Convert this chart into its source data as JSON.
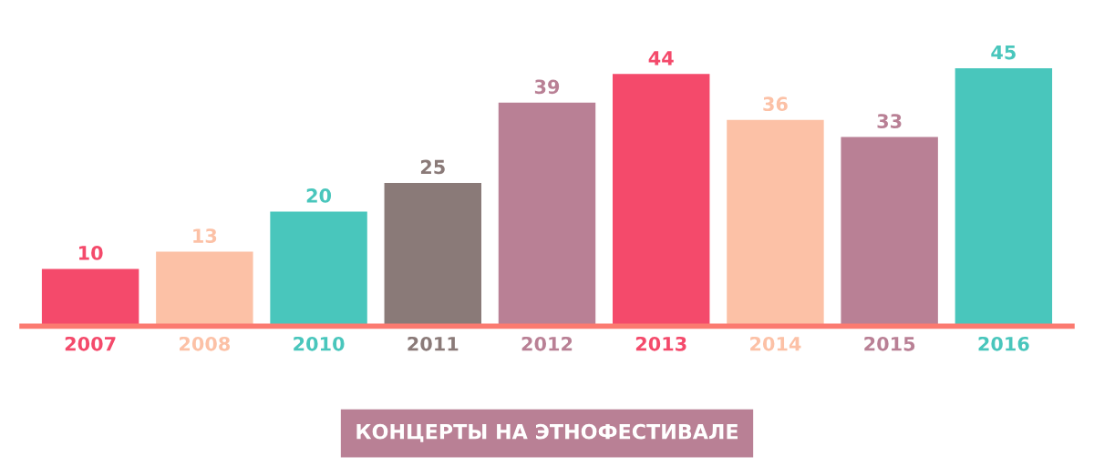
{
  "chart_data": {
    "type": "bar",
    "title": "КОНЦЕРТЫ НА ЭТНОФЕСТИВАЛЕ",
    "categories": [
      "2007",
      "2008",
      "2010",
      "2011",
      "2012",
      "2013",
      "2014",
      "2015",
      "2016"
    ],
    "values": [
      10,
      13,
      20,
      25,
      39,
      44,
      36,
      33,
      45
    ],
    "colors": [
      "#f44a6b",
      "#fcc1a6",
      "#49c6bc",
      "#8a7a78",
      "#b98095",
      "#f44a6b",
      "#fcc1a6",
      "#b98095",
      "#49c6bc"
    ],
    "data_labels": true,
    "grid": false,
    "legend": false,
    "tick_labels": "x"
  }
}
